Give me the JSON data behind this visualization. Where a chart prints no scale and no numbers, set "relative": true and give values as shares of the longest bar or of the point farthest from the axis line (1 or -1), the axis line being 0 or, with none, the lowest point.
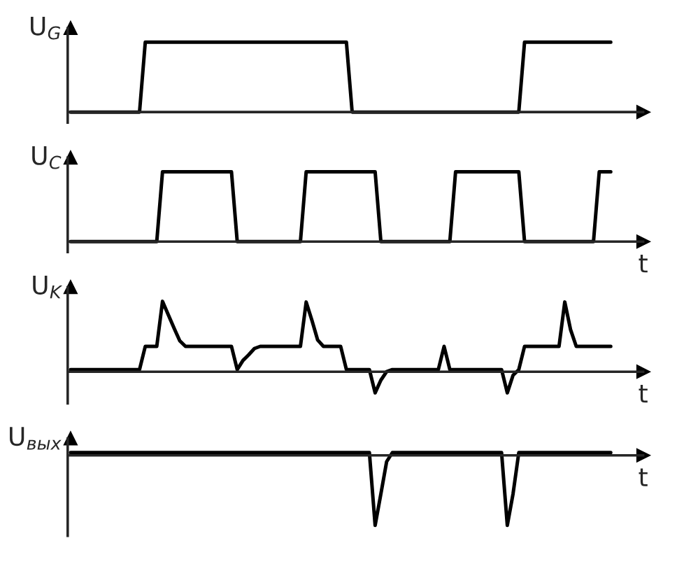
{
  "chart_data": [
    {
      "type": "line",
      "relative": true,
      "ylabel": "U$_{G}$",
      "categories": [
        null,
        null,
        null,
        null,
        null,
        null,
        null,
        null,
        null,
        null,
        null,
        null,
        null,
        null,
        null,
        null,
        null,
        null,
        null,
        null,
        null,
        null,
        null,
        null,
        null,
        null,
        null,
        null,
        null,
        null,
        null,
        null,
        null,
        null,
        null,
        null,
        null,
        null,
        null,
        null,
        null,
        null,
        null,
        null,
        null,
        null,
        null,
        null,
        null,
        null,
        null,
        null,
        null,
        null,
        null,
        null,
        null,
        null,
        null,
        null,
        null,
        null,
        null,
        null,
        null,
        null,
        null,
        null,
        null,
        null,
        null,
        null,
        null,
        null,
        null,
        null,
        null,
        null,
        null,
        null,
        null,
        null,
        null,
        null,
        null,
        null,
        null,
        null,
        null,
        null,
        null,
        null,
        null,
        null,
        null
      ],
      "series": [
        {
          "color": "#000000",
          "values": [
            0,
            0,
            0,
            0,
            0,
            0,
            0,
            0,
            0,
            0,
            0,
            0,
            0,
            1,
            1,
            1,
            1,
            1,
            1,
            1,
            1,
            1,
            1,
            1,
            1,
            1,
            1,
            1,
            1,
            1,
            1,
            1,
            1,
            1,
            1,
            1,
            1,
            1,
            1,
            1,
            1,
            1,
            1,
            1,
            1,
            1,
            1,
            1,
            1,
            0,
            0,
            0,
            0,
            0,
            0,
            0,
            0,
            0,
            0,
            0,
            0,
            0,
            0,
            0,
            0,
            0,
            0,
            0,
            0,
            0,
            0,
            0,
            0,
            0,
            0,
            0,
            0,
            0,
            0,
            1,
            1,
            1,
            1,
            1,
            1,
            1,
            1,
            1,
            1,
            1,
            1,
            1,
            1,
            1,
            1
          ]
        }
      ]
    },
    {
      "type": "line",
      "relative": true,
      "ylabel": "U$_{C}$",
      "xlabel": "t",
      "categories": [
        null,
        null,
        null,
        null,
        null,
        null,
        null,
        null,
        null,
        null,
        null,
        null,
        null,
        null,
        null,
        null,
        null,
        null,
        null,
        null,
        null,
        null,
        null,
        null,
        null,
        null,
        null,
        null,
        null,
        null,
        null,
        null,
        null,
        null,
        null,
        null,
        null,
        null,
        null,
        null,
        null,
        null,
        null,
        null,
        null,
        null,
        null,
        null,
        null,
        null,
        null,
        null,
        null,
        null,
        null,
        null,
        null,
        null,
        null,
        null,
        null,
        null,
        null,
        null,
        null,
        null,
        null,
        null,
        null,
        null,
        null,
        null,
        null,
        null,
        null,
        null,
        null,
        null,
        null,
        null,
        null,
        null,
        null,
        null,
        null,
        null,
        null,
        null,
        null,
        null,
        null,
        null,
        null,
        null,
        null
      ],
      "series": [
        {
          "color": "#000000",
          "values": [
            0,
            0,
            0,
            0,
            0,
            0,
            0,
            0,
            0,
            0,
            0,
            0,
            0,
            0,
            0,
            0,
            1,
            1,
            1,
            1,
            1,
            1,
            1,
            1,
            1,
            1,
            1,
            1,
            1,
            0,
            0,
            0,
            0,
            0,
            0,
            0,
            0,
            0,
            0,
            0,
            0,
            1,
            1,
            1,
            1,
            1,
            1,
            1,
            1,
            1,
            1,
            1,
            1,
            1,
            0,
            0,
            0,
            0,
            0,
            0,
            0,
            0,
            0,
            0,
            0,
            0,
            0,
            1,
            1,
            1,
            1,
            1,
            1,
            1,
            1,
            1,
            1,
            1,
            1,
            0,
            0,
            0,
            0,
            0,
            0,
            0,
            0,
            0,
            0,
            0,
            0,
            0,
            1,
            1,
            1
          ]
        }
      ]
    },
    {
      "type": "line",
      "relative": true,
      "ylabel": "U$_{K}$",
      "xlabel": "t",
      "categories": [
        null,
        null,
        null,
        null,
        null,
        null,
        null,
        null,
        null,
        null,
        null,
        null,
        null,
        null,
        null,
        null,
        null,
        null,
        null,
        null,
        null,
        null,
        null,
        null,
        null,
        null,
        null,
        null,
        null,
        null,
        null,
        null,
        null,
        null,
        null,
        null,
        null,
        null,
        null,
        null,
        null,
        null,
        null,
        null,
        null,
        null,
        null,
        null,
        null,
        null,
        null,
        null,
        null,
        null,
        null,
        null,
        null,
        null,
        null,
        null,
        null,
        null,
        null,
        null,
        null,
        null,
        null,
        null,
        null,
        null,
        null,
        null,
        null,
        null,
        null,
        null,
        null,
        null,
        null,
        null,
        null,
        null,
        null,
        null,
        null,
        null,
        null,
        null,
        null,
        null,
        null,
        null,
        null,
        null,
        null
      ],
      "series": [
        {
          "color": "#000000",
          "values": [
            0.03,
            0.03,
            0.03,
            0.03,
            0.03,
            0.03,
            0.03,
            0.03,
            0.03,
            0.03,
            0.03,
            0.03,
            0.03,
            0.36,
            0.36,
            0.36,
            1,
            0.81,
            0.62,
            0.44,
            0.36,
            0.36,
            0.36,
            0.36,
            0.36,
            0.36,
            0.36,
            0.36,
            0.36,
            0.03,
            0.16,
            0.24,
            0.33,
            0.36,
            0.36,
            0.36,
            0.36,
            0.36,
            0.36,
            0.36,
            0.36,
            0.99,
            0.73,
            0.45,
            0.36,
            0.36,
            0.36,
            0.36,
            0.03,
            0.03,
            0.03,
            0.03,
            0.03,
            -0.3,
            -0.12,
            0,
            0.03,
            0.03,
            0.03,
            0.03,
            0.03,
            0.03,
            0.03,
            0.03,
            0.03,
            0.36,
            0.03,
            0.03,
            0.03,
            0.03,
            0.03,
            0.03,
            0.03,
            0.03,
            0.03,
            0.03,
            -0.3,
            -0.05,
            0.03,
            0.36,
            0.36,
            0.36,
            0.36,
            0.36,
            0.36,
            0.36,
            0.99,
            0.6,
            0.36,
            0.36,
            0.36,
            0.36,
            0.36,
            0.36,
            0.36
          ]
        }
      ]
    },
    {
      "type": "line",
      "relative": true,
      "ylabel": "U$_{вых}$",
      "xlabel": "t",
      "categories": [
        null,
        null,
        null,
        null,
        null,
        null,
        null,
        null,
        null,
        null,
        null,
        null,
        null,
        null,
        null,
        null,
        null,
        null,
        null,
        null,
        null,
        null,
        null,
        null,
        null,
        null,
        null,
        null,
        null,
        null,
        null,
        null,
        null,
        null,
        null,
        null,
        null,
        null,
        null,
        null,
        null,
        null,
        null,
        null,
        null,
        null,
        null,
        null,
        null,
        null,
        null,
        null,
        null,
        null,
        null,
        null,
        null,
        null,
        null,
        null,
        null,
        null,
        null,
        null,
        null,
        null,
        null,
        null,
        null,
        null,
        null,
        null,
        null,
        null,
        null,
        null,
        null,
        null,
        null,
        null,
        null,
        null,
        null,
        null,
        null,
        null,
        null,
        null,
        null,
        null,
        null,
        null,
        null,
        null,
        null
      ],
      "series": [
        {
          "color": "#000000",
          "values": [
            0.04,
            0.04,
            0.04,
            0.04,
            0.04,
            0.04,
            0.04,
            0.04,
            0.04,
            0.04,
            0.04,
            0.04,
            0.04,
            0.04,
            0.04,
            0.04,
            0.04,
            0.04,
            0.04,
            0.04,
            0.04,
            0.04,
            0.04,
            0.04,
            0.04,
            0.04,
            0.04,
            0.04,
            0.04,
            0.04,
            0.04,
            0.04,
            0.04,
            0.04,
            0.04,
            0.04,
            0.04,
            0.04,
            0.04,
            0.04,
            0.04,
            0.04,
            0.04,
            0.04,
            0.04,
            0.04,
            0.04,
            0.04,
            0.04,
            0.04,
            0.04,
            0.04,
            0.04,
            -1,
            -0.55,
            -0.09,
            0.04,
            0.04,
            0.04,
            0.04,
            0.04,
            0.04,
            0.04,
            0.04,
            0.04,
            0.04,
            0.04,
            0.04,
            0.04,
            0.04,
            0.04,
            0.04,
            0.04,
            0.04,
            0.04,
            0.04,
            -1,
            -0.55,
            0.04,
            0.04,
            0.04,
            0.04,
            0.04,
            0.04,
            0.04,
            0.04,
            0.04,
            0.04,
            0.04,
            0.04,
            0.04,
            0.04,
            0.04,
            0.04,
            0.04
          ]
        }
      ]
    }
  ]
}
